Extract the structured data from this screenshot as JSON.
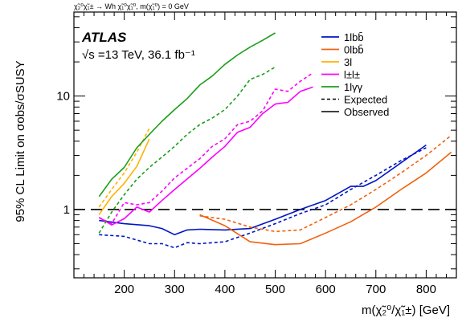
{
  "chart_data": {
    "type": "line",
    "top_label": "χ̃₂⁰χ̃₁± → Wh χ̃₁⁰χ̃₁⁰, m(χ̃₁⁰) = 0 GeV",
    "experiment": "ATLAS",
    "energy_lumi": "√s =13 TeV, 36.1 fb⁻¹",
    "xlabel": "m(χ̃₂⁰/χ̃₁±) [GeV]",
    "ylabel": "95% CL Limit on σobs/σSUSY",
    "xlim": [
      100,
      860
    ],
    "ylim": [
      0.25,
      55
    ],
    "y_scale": "log",
    "x_ticks": [
      200,
      300,
      400,
      500,
      600,
      700,
      800
    ],
    "y_ticks": [
      1,
      10
    ],
    "reference_line": 1,
    "legend_position": "top-right",
    "series": [
      {
        "name": "1lbb̄",
        "color": "#0015c5",
        "observed": {
          "x": [
            150,
            200,
            250,
            275,
            300,
            325,
            350,
            400,
            450,
            500,
            550,
            600,
            650,
            675,
            700,
            800
          ],
          "y": [
            0.8,
            0.75,
            0.72,
            0.68,
            0.6,
            0.66,
            0.67,
            0.66,
            0.68,
            0.82,
            1.0,
            1.2,
            1.6,
            1.6,
            1.8,
            3.7
          ]
        },
        "expected": {
          "x": [
            150,
            200,
            250,
            275,
            300,
            325,
            350,
            400,
            450,
            500,
            550,
            600,
            650,
            700,
            750,
            800
          ],
          "y": [
            0.6,
            0.58,
            0.5,
            0.5,
            0.46,
            0.51,
            0.5,
            0.52,
            0.62,
            0.75,
            0.92,
            1.1,
            1.5,
            2.0,
            2.7,
            3.5
          ]
        }
      },
      {
        "name": "0lbb̄",
        "color": "#f0620e",
        "observed": {
          "x": [
            350,
            400,
            450,
            500,
            550,
            600,
            650,
            700,
            750,
            800,
            850
          ],
          "y": [
            0.9,
            0.72,
            0.52,
            0.49,
            0.5,
            0.62,
            0.78,
            1.05,
            1.5,
            2.1,
            3.2
          ]
        },
        "expected": {
          "x": [
            350,
            400,
            450,
            500,
            550,
            600,
            650,
            700,
            750,
            800,
            850
          ],
          "y": [
            0.88,
            0.82,
            0.7,
            0.64,
            0.66,
            0.85,
            1.1,
            1.5,
            2.1,
            3.0,
            4.5
          ]
        }
      },
      {
        "name": "3l",
        "color": "#ffb200",
        "observed": {
          "x": [
            150,
            175,
            200,
            225,
            250
          ],
          "y": [
            0.9,
            1.3,
            1.7,
            2.4,
            4.2
          ]
        },
        "expected": {
          "x": [
            150,
            175,
            200,
            225,
            250
          ],
          "y": [
            1.05,
            1.5,
            2.1,
            3.2,
            5.2
          ]
        }
      },
      {
        "name": "l±l±",
        "color": "#ff00ff",
        "observed": {
          "x": [
            150,
            175,
            200,
            225,
            250,
            275,
            300,
            350,
            375,
            400,
            425,
            450,
            475,
            500,
            525,
            550,
            575
          ],
          "y": [
            0.85,
            0.73,
            0.83,
            1.05,
            0.95,
            1.2,
            1.5,
            2.3,
            2.9,
            3.6,
            4.8,
            5.3,
            7.0,
            8.5,
            8.8,
            11,
            12
          ]
        },
        "expected": {
          "x": [
            150,
            175,
            200,
            225,
            250,
            275,
            300,
            350,
            375,
            400,
            425,
            450,
            475,
            500,
            525,
            550,
            575
          ],
          "y": [
            0.85,
            0.75,
            1.15,
            1.1,
            1.15,
            1.45,
            1.9,
            2.8,
            3.6,
            4.2,
            5.6,
            6.0,
            7.4,
            11.5,
            11,
            13.5,
            16
          ]
        }
      },
      {
        "name": "1lγγ",
        "color": "#1a9e1a",
        "observed": {
          "x": [
            150,
            175,
            200,
            225,
            250,
            275,
            300,
            325,
            350,
            375,
            400,
            425,
            450,
            475,
            500
          ],
          "y": [
            1.3,
            1.85,
            2.35,
            3.5,
            4.6,
            6.0,
            7.6,
            9.5,
            12.5,
            15,
            19,
            23,
            27,
            31,
            36
          ]
        },
        "expected": {
          "x": [
            150,
            175,
            200,
            225,
            250,
            275,
            300,
            325,
            350,
            375,
            400,
            425,
            450,
            475,
            500
          ],
          "y": [
            0.62,
            0.95,
            1.35,
            1.85,
            2.35,
            2.9,
            3.6,
            4.6,
            5.6,
            6.4,
            7.6,
            10,
            14,
            15.5,
            18
          ]
        }
      }
    ],
    "legend": {
      "expected_label": "Expected",
      "observed_label": "Observed"
    }
  }
}
